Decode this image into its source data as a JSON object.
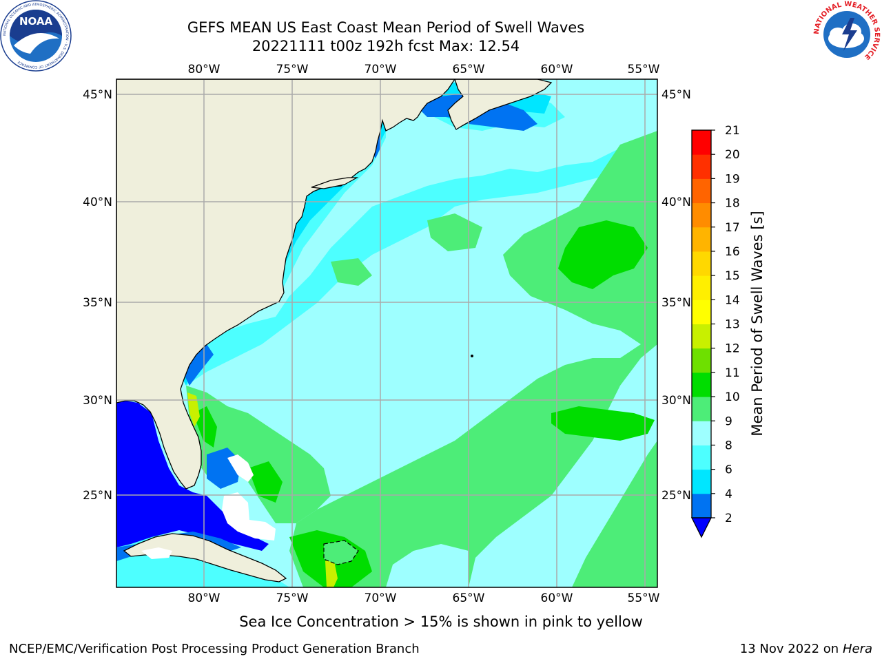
{
  "title_line1": "GEFS MEAN US East Coast Mean Period of Swell Waves",
  "title_line2": "20221111 t00z 192h fcst   Max: 12.54",
  "map": {
    "lon_labels": [
      "80°W",
      "75°W",
      "70°W",
      "65°W",
      "60°W",
      "55°W"
    ],
    "lat_labels": [
      "45°N",
      "40°N",
      "35°N",
      "30°N",
      "25°N"
    ],
    "lon_range": [
      -85,
      -54.3
    ],
    "lat_range": [
      20.3,
      46
    ]
  },
  "colorbar": {
    "label": "Mean Period of Swell Waves [s]",
    "ticks": [
      "2",
      "4",
      "6",
      "8",
      "9",
      "10",
      "11",
      "12",
      "13",
      "14",
      "15",
      "16",
      "17",
      "18",
      "19",
      "20",
      "21"
    ],
    "colors": [
      "#0073f2",
      "#00e6ff",
      "#4dffff",
      "#9effff",
      "#4ded78",
      "#00dd00",
      "#6ee000",
      "#c8f000",
      "#ffff00",
      "#ffef00",
      "#ffd800",
      "#ffb400",
      "#ff8c00",
      "#ff6400",
      "#ff3000",
      "#ff0000"
    ],
    "extend_color": "#0000ff"
  },
  "footer": {
    "note": "Sea Ice Concentration > 15% is shown in pink to yellow",
    "left": "NCEP/EMC/Verification Post Processing Product Generation Branch",
    "right_date": "13 Nov 2022 on",
    "right_system": "Hera"
  },
  "logos": {
    "noaa_text": "NOAA",
    "noaa_ring_text": "NATIONAL OCEANIC AND ATMOSPHERIC ADMINISTRATION · U.S. DEPARTMENT OF COMMERCE",
    "nws_ring_text": "NATIONAL WEATHER SERVICE"
  }
}
